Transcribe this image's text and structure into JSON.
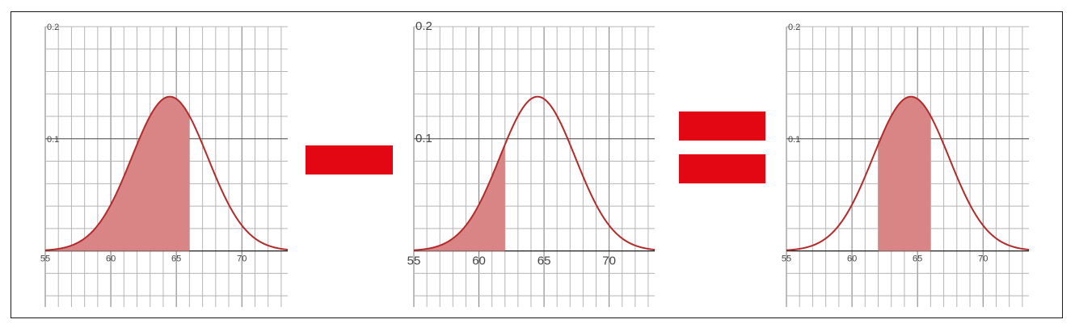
{
  "colors": {
    "curve": "#b22a2a",
    "shade": "#d98585",
    "operator": "#e30613",
    "grid": "#b5b5b5",
    "axis": "#222222"
  },
  "chart_data": [
    {
      "type": "area",
      "xlim": [
        55,
        73.5
      ],
      "ylim": [
        -0.05,
        0.2
      ],
      "x_ticks": [
        "55",
        "60",
        "65",
        "70"
      ],
      "y_ticks": [
        "0.2",
        "0.1"
      ],
      "curve": {
        "distribution": "normal",
        "mean": 64.5,
        "sd": 2.9
      },
      "shaded_interval": [
        55,
        66
      ]
    },
    {
      "type": "area",
      "xlim": [
        55,
        73.5
      ],
      "ylim": [
        -0.05,
        0.2
      ],
      "x_ticks": [
        "55",
        "60",
        "65",
        "70"
      ],
      "y_ticks": [
        "0.2",
        "0.1"
      ],
      "curve": {
        "distribution": "normal",
        "mean": 64.5,
        "sd": 2.9
      },
      "shaded_interval": [
        55,
        62
      ]
    },
    {
      "type": "area",
      "xlim": [
        55,
        73.5
      ],
      "ylim": [
        -0.05,
        0.2
      ],
      "x_ticks": [
        "55",
        "60",
        "65",
        "70"
      ],
      "y_ticks": [
        "0.2",
        "0.1"
      ],
      "curve": {
        "distribution": "normal",
        "mean": 64.5,
        "sd": 2.9
      },
      "shaded_interval": [
        62,
        66
      ]
    }
  ],
  "operators": [
    "minus",
    "equals"
  ]
}
